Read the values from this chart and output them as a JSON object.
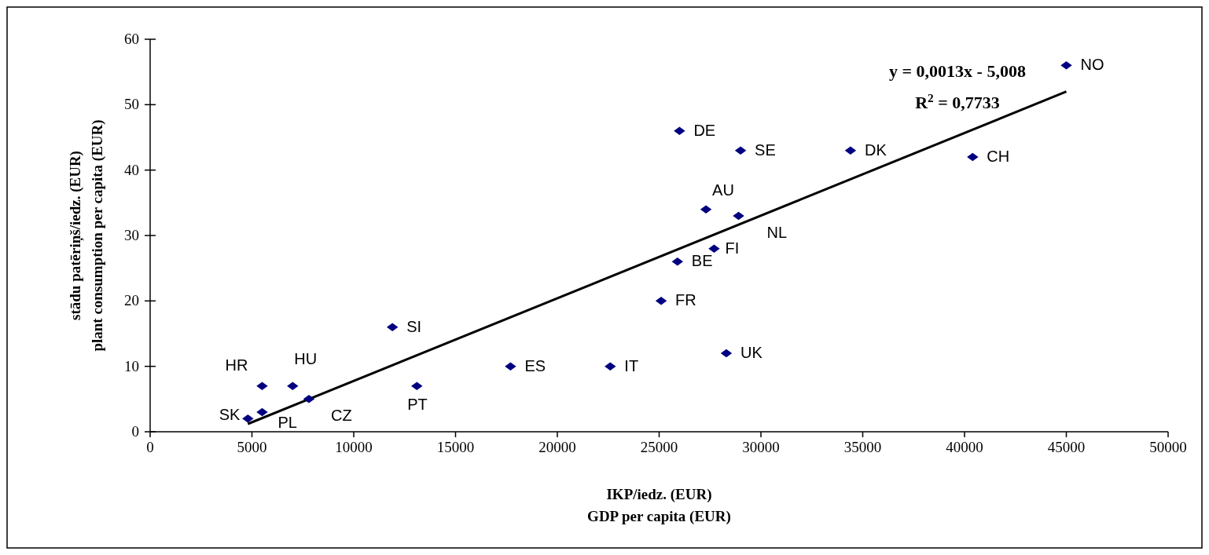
{
  "chart_data": {
    "type": "scatter",
    "xlabel": "IKP/iedz. (EUR)\nGDP per capita (EUR)",
    "ylabel": "stādu patēriņš/iedz. (EUR)\nplant consumption per capita (EUR)",
    "xlim": [
      0,
      50000
    ],
    "xticks": [
      0,
      5000,
      10000,
      15000,
      20000,
      25000,
      30000,
      35000,
      40000,
      45000,
      50000
    ],
    "ylim": [
      0,
      60
    ],
    "yticks": [
      0,
      10,
      20,
      30,
      40,
      50,
      60
    ],
    "grid": false,
    "marker": "diamond",
    "series": [
      {
        "color": "#000080",
        "x": [
          45000,
          26000,
          29000,
          34400,
          40400,
          27300,
          28900,
          27700,
          25900,
          25100,
          28300,
          22600,
          11900,
          17700,
          13100,
          5500,
          7000,
          7800,
          5500,
          4800
        ],
        "values": [
          56,
          46,
          43,
          43,
          42,
          34,
          33,
          28,
          26,
          20,
          12,
          10,
          16,
          10,
          7,
          7,
          7,
          5,
          3,
          2
        ]
      },
      {
        "type": "line",
        "color": "#000000",
        "line_style": "solid",
        "marker": "none",
        "x": [
          4800,
          45000
        ],
        "values": [
          1.2,
          52
        ]
      }
    ],
    "annotations": [
      {
        "text": "NO",
        "x": 45000,
        "y": 56
      },
      {
        "text": "DE",
        "x": 26000,
        "y": 46
      },
      {
        "text": "SE",
        "x": 29000,
        "y": 43
      },
      {
        "text": "DK",
        "x": 34400,
        "y": 43
      },
      {
        "text": "CH",
        "x": 40400,
        "y": 42
      },
      {
        "text": "AU",
        "x": 27300,
        "y": 34
      },
      {
        "text": "NL",
        "x": 28900,
        "y": 33
      },
      {
        "text": "FI",
        "x": 27700,
        "y": 28
      },
      {
        "text": "BE",
        "x": 25900,
        "y": 26
      },
      {
        "text": "FR",
        "x": 25100,
        "y": 20
      },
      {
        "text": "UK",
        "x": 28300,
        "y": 12
      },
      {
        "text": "IT",
        "x": 22600,
        "y": 10
      },
      {
        "text": "SI",
        "x": 11900,
        "y": 16
      },
      {
        "text": "ES",
        "x": 17700,
        "y": 10
      },
      {
        "text": "PT",
        "x": 13100,
        "y": 7
      },
      {
        "text": "HR",
        "x": 5500,
        "y": 7
      },
      {
        "text": "HU",
        "x": 7000,
        "y": 7
      },
      {
        "text": "CZ",
        "x": 7800,
        "y": 5
      },
      {
        "text": "PL",
        "x": 5500,
        "y": 3
      },
      {
        "text": "SK",
        "x": 4800,
        "y": 2
      },
      "y = 0,0013x - 5,008",
      "R$^{2}$ = 0,7733"
    ]
  }
}
